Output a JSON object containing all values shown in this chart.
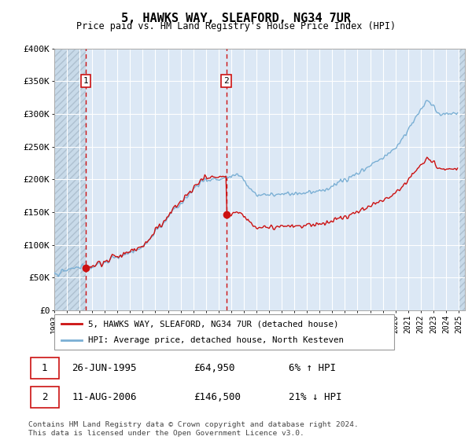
{
  "title": "5, HAWKS WAY, SLEAFORD, NG34 7UR",
  "subtitle": "Price paid vs. HM Land Registry's House Price Index (HPI)",
  "ylim": [
    0,
    400000
  ],
  "yticks": [
    0,
    50000,
    100000,
    150000,
    200000,
    250000,
    300000,
    350000,
    400000
  ],
  "ytick_labels": [
    "£0",
    "£50K",
    "£100K",
    "£150K",
    "£200K",
    "£250K",
    "£300K",
    "£350K",
    "£400K"
  ],
  "hpi_color": "#7aafd4",
  "price_color": "#cc1111",
  "marker_color": "#cc1111",
  "t1_year": 1995.486,
  "t1_price": 64950,
  "t2_year": 2006.608,
  "t2_price": 146500,
  "legend_line1": "5, HAWKS WAY, SLEAFORD, NG34 7UR (detached house)",
  "legend_line2": "HPI: Average price, detached house, North Kesteven",
  "t1_date_str": "26-JUN-1995",
  "t1_price_str": "£64,950",
  "t1_pct": "6% ↑ HPI",
  "t2_date_str": "11-AUG-2006",
  "t2_price_str": "£146,500",
  "t2_pct": "21% ↓ HPI",
  "footer": "Contains HM Land Registry data © Crown copyright and database right 2024.\nThis data is licensed under the Open Government Licence v3.0.",
  "plot_bg": "#dce8f5",
  "grid_color": "#ffffff",
  "vline_color": "#cc1111",
  "hatch_color": "#b0c4d8"
}
